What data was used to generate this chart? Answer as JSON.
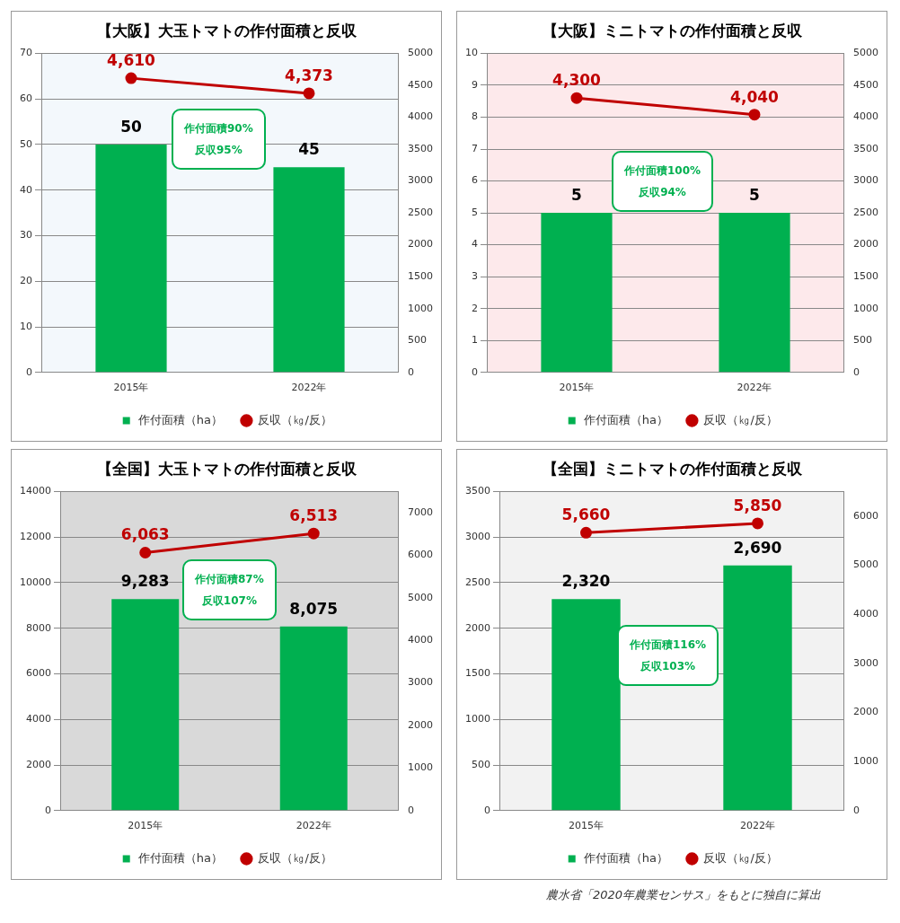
{
  "chart_data": [
    {
      "type": "bar",
      "title": "【大阪】大玉トマトの作付面積と反収",
      "categories": [
        "2015年",
        "2022年"
      ],
      "series": [
        {
          "name": "作付面積（ha）",
          "type": "bar",
          "color": "#00b050",
          "values": [
            50,
            45
          ],
          "value_labels": [
            "50",
            "45"
          ]
        },
        {
          "name": "反収（㎏/反）",
          "type": "line",
          "axis": "y2",
          "color": "#c00000",
          "values": [
            4610,
            4373
          ],
          "value_labels": [
            "4,610",
            "4,373"
          ]
        }
      ],
      "ylim": [
        0,
        70
      ],
      "yticks": [
        0,
        10,
        20,
        30,
        40,
        50,
        60,
        70
      ],
      "y2lim": [
        0,
        5000
      ],
      "y2ticks": [
        0,
        500,
        1000,
        1500,
        2000,
        2500,
        3000,
        3500,
        4000,
        4500,
        5000
      ],
      "grid": "y",
      "legend": "bottom",
      "marker": "circle",
      "line_style": "solid",
      "annotations": [
        "作付面積90%",
        "反収95%"
      ]
    },
    {
      "type": "bar",
      "title": "【大阪】ミニトマトの作付面積と反収",
      "categories": [
        "2015年",
        "2022年"
      ],
      "series": [
        {
          "name": "作付面積（ha）",
          "type": "bar",
          "color": "#00b050",
          "values": [
            5,
            5
          ],
          "value_labels": [
            "5",
            "5"
          ]
        },
        {
          "name": "反収（㎏/反）",
          "type": "line",
          "axis": "y2",
          "color": "#c00000",
          "values": [
            4300,
            4040
          ],
          "value_labels": [
            "4,300",
            "4,040"
          ]
        }
      ],
      "ylim": [
        0,
        10
      ],
      "yticks": [
        0,
        1,
        2,
        3,
        4,
        5,
        6,
        7,
        8,
        9,
        10
      ],
      "y2lim": [
        0,
        5000
      ],
      "y2ticks": [
        0,
        500,
        1000,
        1500,
        2000,
        2500,
        3000,
        3500,
        4000,
        4500,
        5000
      ],
      "grid": "y",
      "legend": "bottom",
      "marker": "circle",
      "line_style": "solid",
      "annotations": [
        "作付面積100%",
        "反収94%"
      ]
    },
    {
      "type": "bar",
      "title": "【全国】大玉トマトの作付面積と反収",
      "categories": [
        "2015年",
        "2022年"
      ],
      "series": [
        {
          "name": "作付面積（ha）",
          "type": "bar",
          "color": "#00b050",
          "values": [
            9283,
            8075
          ],
          "value_labels": [
            "9,283",
            "8,075"
          ]
        },
        {
          "name": "反収（㎏/反）",
          "type": "line",
          "axis": "y2",
          "color": "#c00000",
          "values": [
            6063,
            6513
          ],
          "value_labels": [
            "6,063",
            "6,513"
          ]
        }
      ],
      "ylim": [
        0,
        14000
      ],
      "yticks": [
        0,
        2000,
        4000,
        6000,
        8000,
        10000,
        12000,
        14000
      ],
      "y2lim": [
        0,
        7500
      ],
      "y2ticks": [
        0,
        1000,
        2000,
        3000,
        4000,
        5000,
        6000,
        7000
      ],
      "grid": "y",
      "legend": "bottom",
      "marker": "circle",
      "line_style": "solid",
      "annotations": [
        "作付面積87%",
        "反収107%"
      ]
    },
    {
      "type": "bar",
      "title": "【全国】ミニトマトの作付面積と反収",
      "categories": [
        "2015年",
        "2022年"
      ],
      "series": [
        {
          "name": "作付面積（ha）",
          "type": "bar",
          "color": "#00b050",
          "values": [
            2320,
            2690
          ],
          "value_labels": [
            "2,320",
            "2,690"
          ]
        },
        {
          "name": "反収（㎏/反）",
          "type": "line",
          "axis": "y2",
          "color": "#c00000",
          "values": [
            5660,
            5850
          ],
          "value_labels": [
            "5,660",
            "5,850"
          ]
        }
      ],
      "ylim": [
        0,
        3500
      ],
      "yticks": [
        0,
        500,
        1000,
        1500,
        2000,
        2500,
        3000,
        3500
      ],
      "y2lim": [
        0,
        6500
      ],
      "y2ticks": [
        0,
        1000,
        2000,
        3000,
        4000,
        5000,
        6000
      ],
      "grid": "y",
      "legend": "bottom",
      "marker": "circle",
      "line_style": "solid",
      "annotations": [
        "作付面積116%",
        "反収103%"
      ]
    },
    {
      "type": "other",
      "annotations": [
        "農水省「2020年農業センサス」をもとに独自に算出"
      ]
    }
  ]
}
